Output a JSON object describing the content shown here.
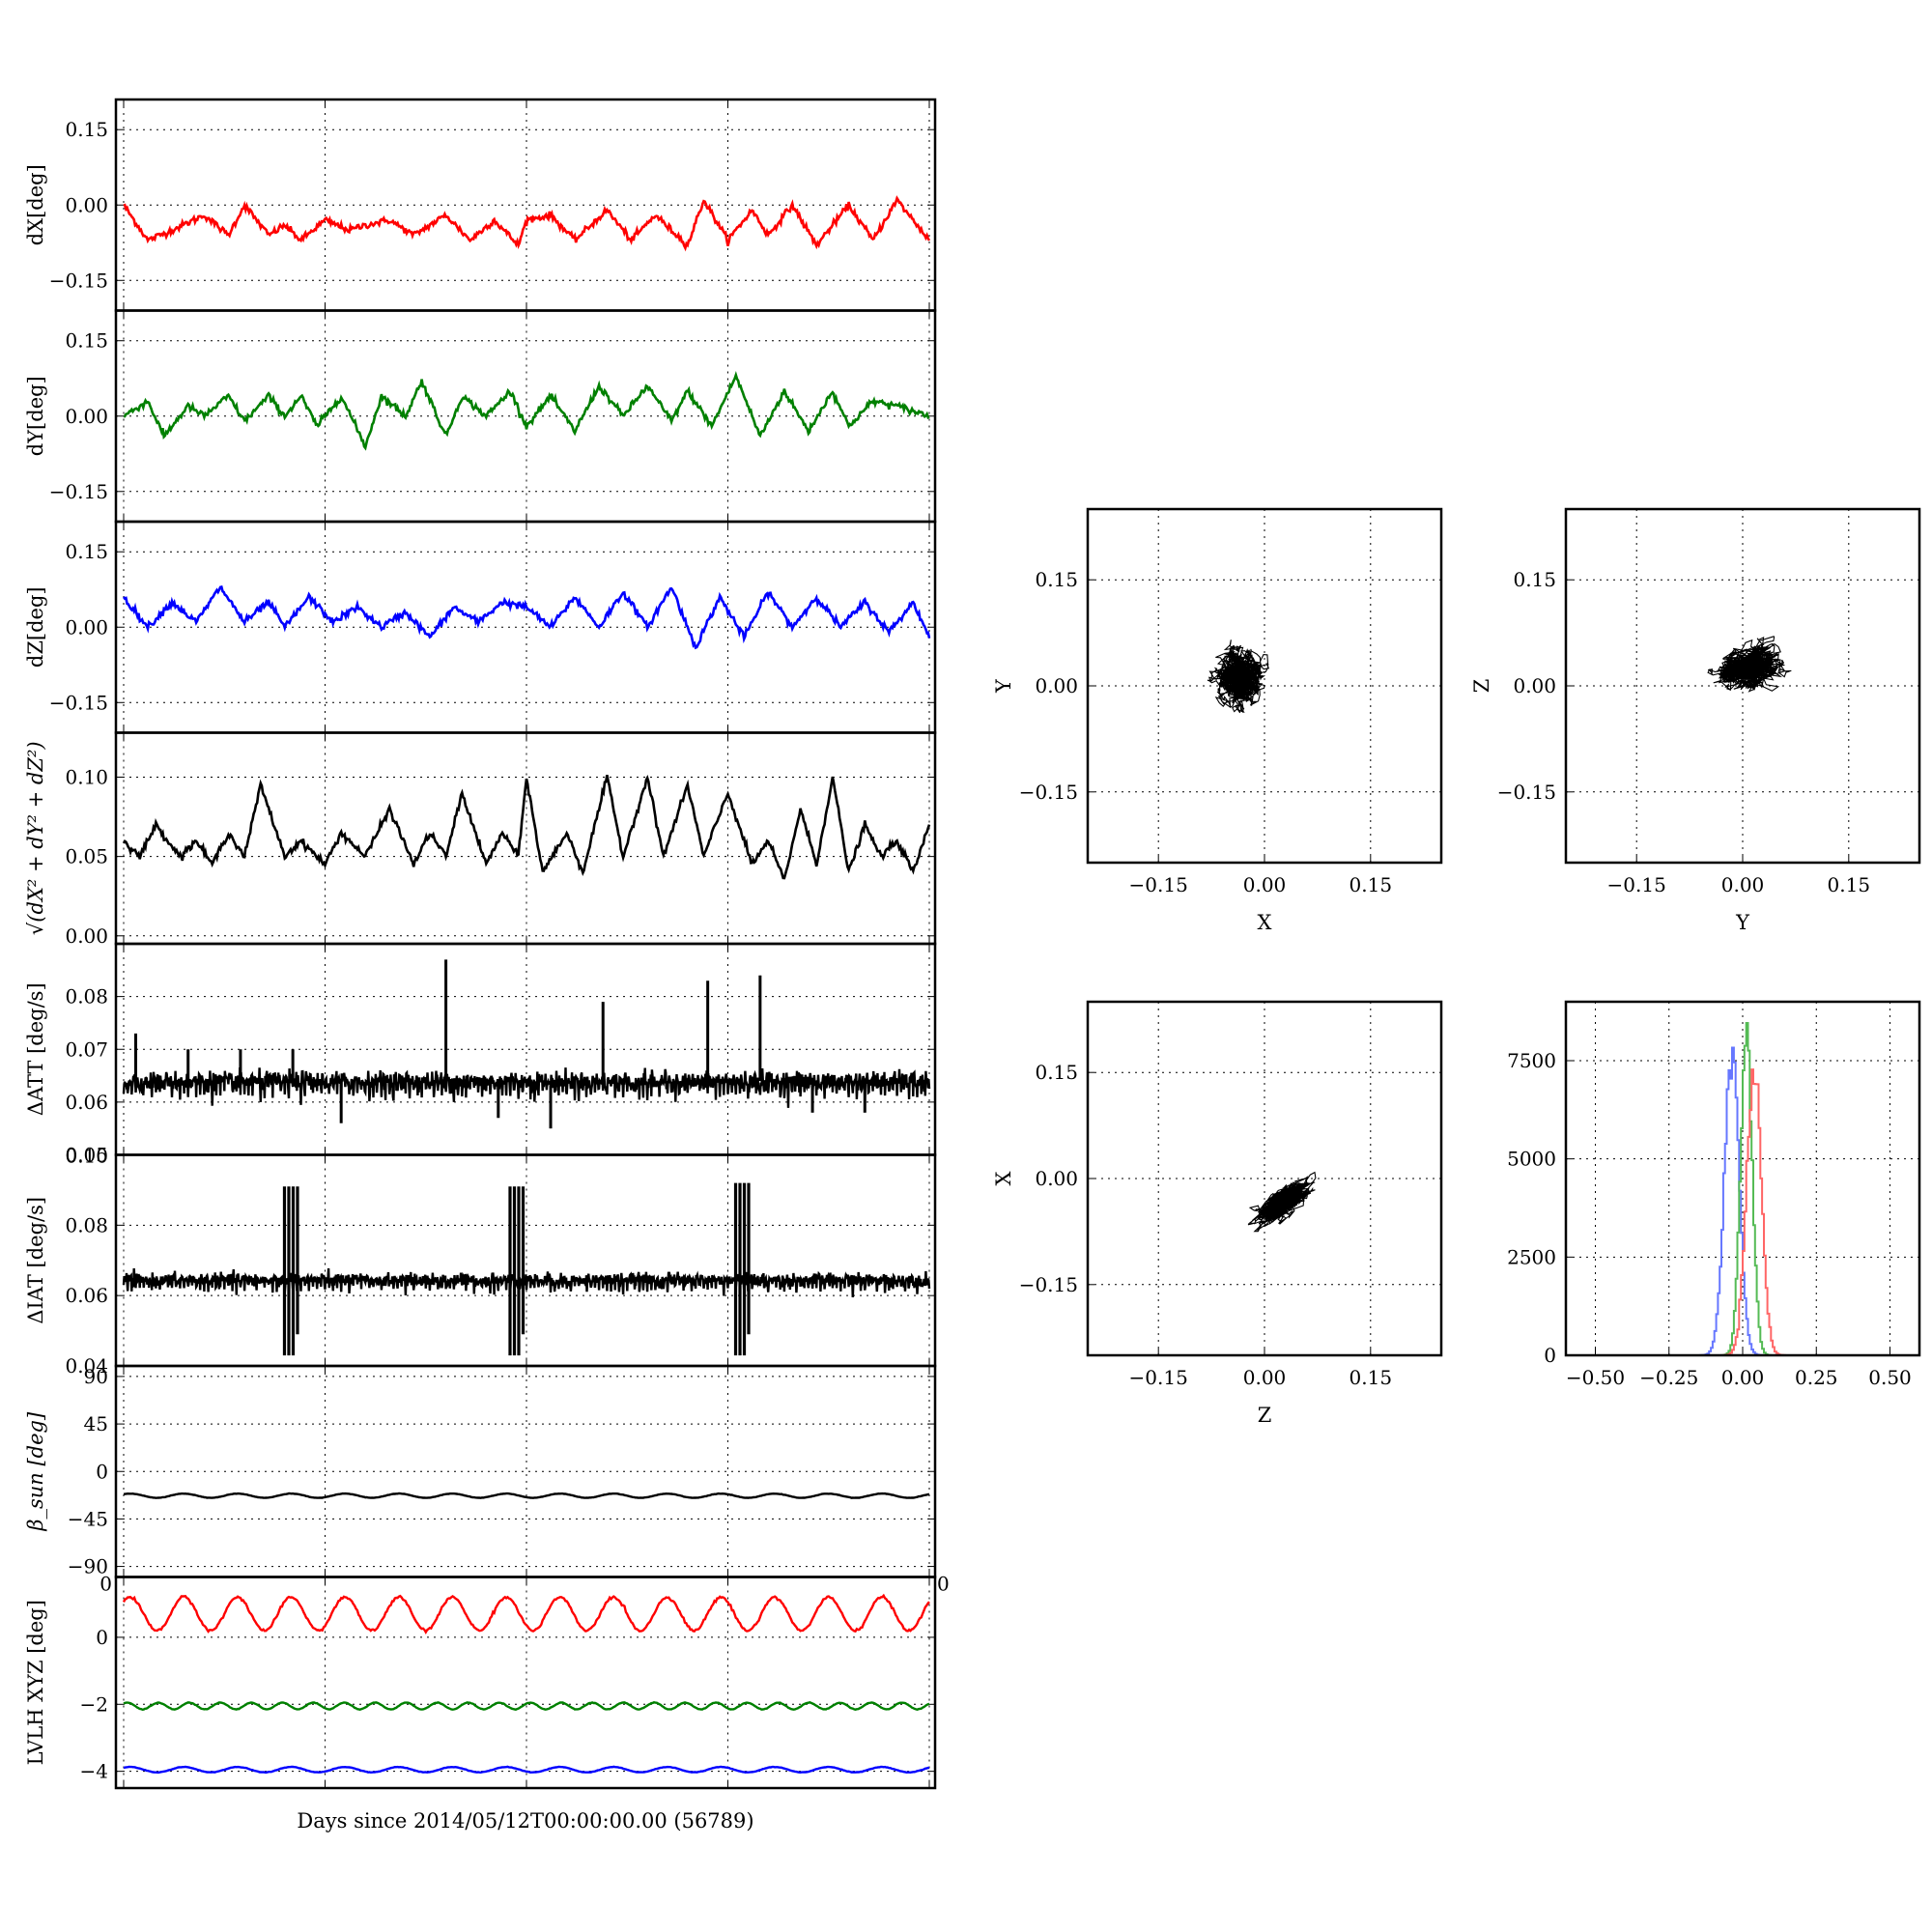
{
  "colors": {
    "red": "#ff0000",
    "green": "#008000",
    "blue": "#0000ff",
    "black": "#000000",
    "hist_red": "#ff6666",
    "hist_green": "#55bb55",
    "hist_blue": "#6677ff"
  },
  "common_xlabel": "Days since 2014/05/12T00:00:00.00 (56789)",
  "chart_data": [
    {
      "id": "dx",
      "type": "line",
      "ylabel": "dX[deg]",
      "ylim": [
        -0.21,
        0.21
      ],
      "yticks": [
        -0.15,
        0.0,
        0.15
      ],
      "ytick_labels": [
        "−0.15",
        "0.00",
        "0.15"
      ],
      "grid": true,
      "series": [
        {
          "color": "red",
          "x": [
            0,
            0.03,
            0.06,
            0.1,
            0.13,
            0.15,
            0.18,
            0.2,
            0.22,
            0.25,
            0.28,
            0.3,
            0.33,
            0.36,
            0.4,
            0.43,
            0.46,
            0.49,
            0.5,
            0.53,
            0.56,
            0.6,
            0.63,
            0.66,
            0.7,
            0.72,
            0.75,
            0.78,
            0.8,
            0.83,
            0.86,
            0.9,
            0.93,
            0.96,
            1.0
          ],
          "y": [
            0.0,
            -0.07,
            -0.05,
            -0.02,
            -0.06,
            0.0,
            -0.06,
            -0.04,
            -0.07,
            -0.03,
            -0.05,
            -0.04,
            -0.03,
            -0.06,
            -0.02,
            -0.07,
            -0.03,
            -0.08,
            -0.03,
            -0.02,
            -0.07,
            -0.01,
            -0.07,
            -0.02,
            -0.08,
            0.01,
            -0.07,
            -0.01,
            -0.06,
            0.0,
            -0.08,
            0.0,
            -0.07,
            0.01,
            -0.07
          ]
        }
      ]
    },
    {
      "id": "dy",
      "type": "line",
      "ylabel": "dY[deg]",
      "ylim": [
        -0.21,
        0.21
      ],
      "yticks": [
        -0.15,
        0.0,
        0.15
      ],
      "ytick_labels": [
        "−0.15",
        "0.00",
        "0.15"
      ],
      "grid": true,
      "series": [
        {
          "color": "green",
          "x": [
            0,
            0.03,
            0.05,
            0.08,
            0.1,
            0.13,
            0.15,
            0.18,
            0.2,
            0.22,
            0.24,
            0.27,
            0.3,
            0.32,
            0.35,
            0.37,
            0.4,
            0.42,
            0.45,
            0.48,
            0.5,
            0.53,
            0.56,
            0.59,
            0.62,
            0.65,
            0.68,
            0.7,
            0.73,
            0.76,
            0.79,
            0.82,
            0.85,
            0.88,
            0.9,
            0.93,
            0.96,
            1.0
          ],
          "y": [
            0.0,
            0.03,
            -0.04,
            0.02,
            0.0,
            0.04,
            -0.01,
            0.04,
            0.0,
            0.04,
            -0.02,
            0.04,
            -0.06,
            0.04,
            0.0,
            0.07,
            -0.04,
            0.04,
            0.0,
            0.05,
            -0.02,
            0.04,
            -0.03,
            0.06,
            0.0,
            0.06,
            -0.01,
            0.05,
            -0.02,
            0.08,
            -0.04,
            0.05,
            -0.03,
            0.05,
            -0.02,
            0.03,
            0.02,
            0.0
          ]
        }
      ]
    },
    {
      "id": "dz",
      "type": "line",
      "ylabel": "dZ[deg]",
      "ylim": [
        -0.21,
        0.21
      ],
      "yticks": [
        -0.15,
        0.0,
        0.15
      ],
      "ytick_labels": [
        "−0.15",
        "0.00",
        "0.15"
      ],
      "grid": true,
      "series": [
        {
          "color": "blue",
          "x": [
            0,
            0.03,
            0.06,
            0.09,
            0.12,
            0.15,
            0.18,
            0.2,
            0.23,
            0.26,
            0.29,
            0.32,
            0.35,
            0.38,
            0.41,
            0.44,
            0.47,
            0.5,
            0.53,
            0.56,
            0.59,
            0.62,
            0.65,
            0.68,
            0.71,
            0.74,
            0.77,
            0.8,
            0.83,
            0.86,
            0.89,
            0.92,
            0.95,
            0.98,
            1.0
          ],
          "y": [
            0.06,
            0.0,
            0.05,
            0.01,
            0.08,
            0.01,
            0.05,
            0.0,
            0.06,
            0.01,
            0.04,
            0.0,
            0.03,
            -0.02,
            0.04,
            0.01,
            0.05,
            0.04,
            0.0,
            0.06,
            0.0,
            0.07,
            0.0,
            0.08,
            -0.04,
            0.06,
            -0.02,
            0.07,
            0.0,
            0.06,
            0.0,
            0.05,
            -0.01,
            0.05,
            -0.02
          ]
        }
      ]
    },
    {
      "id": "dr",
      "type": "line",
      "ylabel_tex": true,
      "ylabel": "√(dX² + dY² + dZ²)",
      "ylim": [
        -0.005,
        0.128
      ],
      "yticks": [
        0.0,
        0.05,
        0.1
      ],
      "ytick_labels": [
        "0.00",
        "0.05",
        "0.10"
      ],
      "grid": true,
      "series": [
        {
          "color": "black",
          "x": [
            0,
            0.02,
            0.04,
            0.07,
            0.09,
            0.11,
            0.13,
            0.15,
            0.17,
            0.2,
            0.22,
            0.25,
            0.27,
            0.3,
            0.33,
            0.36,
            0.38,
            0.4,
            0.42,
            0.45,
            0.47,
            0.49,
            0.5,
            0.52,
            0.55,
            0.57,
            0.6,
            0.62,
            0.65,
            0.67,
            0.7,
            0.72,
            0.75,
            0.78,
            0.8,
            0.82,
            0.84,
            0.86,
            0.88,
            0.9,
            0.92,
            0.94,
            0.96,
            0.98,
            1.0
          ],
          "y": [
            0.06,
            0.05,
            0.07,
            0.05,
            0.06,
            0.045,
            0.065,
            0.05,
            0.095,
            0.05,
            0.06,
            0.045,
            0.065,
            0.05,
            0.08,
            0.045,
            0.065,
            0.05,
            0.09,
            0.045,
            0.065,
            0.05,
            0.1,
            0.04,
            0.065,
            0.04,
            0.1,
            0.05,
            0.1,
            0.05,
            0.095,
            0.05,
            0.09,
            0.045,
            0.06,
            0.035,
            0.08,
            0.045,
            0.1,
            0.04,
            0.07,
            0.05,
            0.06,
            0.04,
            0.07
          ]
        }
      ]
    },
    {
      "id": "datt",
      "type": "line",
      "ylabel": "ΔATT [deg/s]",
      "ylim": [
        0.05,
        0.09
      ],
      "yticks": [
        0.05,
        0.06,
        0.07,
        0.08
      ],
      "ytick_labels": [
        "0.05",
        "0.06",
        "0.07",
        "0.08"
      ],
      "grid": true,
      "base": 0.064,
      "band": 0.002,
      "spikes": [
        {
          "x": 0.015,
          "y": 0.073
        },
        {
          "x": 0.08,
          "y": 0.07
        },
        {
          "x": 0.145,
          "y": 0.07
        },
        {
          "x": 0.21,
          "y": 0.07
        },
        {
          "x": 0.27,
          "y": 0.056
        },
        {
          "x": 0.4,
          "y": 0.087
        },
        {
          "x": 0.465,
          "y": 0.057
        },
        {
          "x": 0.53,
          "y": 0.055
        },
        {
          "x": 0.595,
          "y": 0.079
        },
        {
          "x": 0.725,
          "y": 0.083
        },
        {
          "x": 0.79,
          "y": 0.084
        },
        {
          "x": 0.855,
          "y": 0.058
        },
        {
          "x": 0.92,
          "y": 0.058
        }
      ],
      "series": [
        {
          "color": "black"
        }
      ]
    },
    {
      "id": "diat",
      "type": "line",
      "ylabel": "ΔIAT [deg/s]",
      "ylim": [
        0.04,
        0.1
      ],
      "yticks": [
        0.04,
        0.06,
        0.08
      ],
      "ytick_labels": [
        "0.04",
        "0.06",
        "0.08"
      ],
      "top_tick_label": "0.10",
      "grid": true,
      "base": 0.0645,
      "band": 0.002,
      "bursts": [
        {
          "x": 0.205,
          "low": 0.043,
          "high": 0.091
        },
        {
          "x": 0.485,
          "low": 0.043,
          "high": 0.091
        },
        {
          "x": 0.765,
          "low": 0.043,
          "high": 0.092
        }
      ],
      "series": [
        {
          "color": "black"
        }
      ]
    },
    {
      "id": "beta",
      "type": "line",
      "ylabel": "β_sun [deg]",
      "ylim": [
        -100,
        100
      ],
      "yticks": [
        -90,
        -45,
        0,
        45,
        90
      ],
      "ytick_labels": [
        "−90",
        "−45",
        "0",
        "45",
        "90"
      ],
      "bottom_corner_labels": [
        "0",
        "0"
      ],
      "grid": true,
      "series": [
        {
          "color": "black",
          "mean": -23,
          "amplitude": 2,
          "cycles": 15
        }
      ]
    },
    {
      "id": "lvlh",
      "type": "line",
      "ylabel": "LVLH XYZ [deg]",
      "ylim": [
        -4.5,
        1.8
      ],
      "yticks": [
        -4,
        -2,
        0
      ],
      "ytick_labels": [
        "−4",
        "−2",
        "0"
      ],
      "grid": true,
      "series": [
        {
          "color": "red",
          "mean": 0.7,
          "amplitude": 0.5,
          "cycles": 15
        },
        {
          "color": "green",
          "mean": -2.05,
          "amplitude": 0.1,
          "cycles": 26
        },
        {
          "color": "blue",
          "mean": -3.95,
          "amplitude": 0.08,
          "cycles": 15
        }
      ]
    },
    {
      "id": "xy",
      "type": "scatter",
      "xlabel": "X",
      "ylabel": "Y",
      "xlim": [
        -0.25,
        0.25
      ],
      "ylim": [
        -0.25,
        0.25
      ],
      "ticks": [
        -0.15,
        0.0,
        0.15
      ],
      "tick_labels": [
        "−0.15",
        "0.00",
        "0.15"
      ],
      "grid": true,
      "cloud": {
        "cx": -0.035,
        "cy": 0.01,
        "sx": 0.022,
        "sy": 0.026,
        "rho": 0.0
      }
    },
    {
      "id": "yz",
      "type": "scatter",
      "xlabel": "Y",
      "ylabel": "Z",
      "xlim": [
        -0.25,
        0.25
      ],
      "ylim": [
        -0.25,
        0.25
      ],
      "ticks": [
        -0.15,
        0.0,
        0.15
      ],
      "tick_labels": [
        "−0.15",
        "0.00",
        "0.15"
      ],
      "grid": true,
      "cloud": {
        "cx": 0.005,
        "cy": 0.025,
        "sx": 0.03,
        "sy": 0.022,
        "rho": 0.2
      }
    },
    {
      "id": "zx",
      "type": "scatter",
      "xlabel": "Z",
      "ylabel": "X",
      "xlim": [
        -0.25,
        0.25
      ],
      "ylim": [
        -0.25,
        0.25
      ],
      "ticks": [
        -0.15,
        0.0,
        0.15
      ],
      "tick_labels": [
        "−0.15",
        "0.00",
        "0.15"
      ],
      "grid": true,
      "cloud": {
        "cx": 0.025,
        "cy": -0.035,
        "sx": 0.026,
        "sy": 0.02,
        "rho": 0.75
      }
    },
    {
      "id": "hist",
      "type": "histogram",
      "xlim": [
        -0.6,
        0.6
      ],
      "ylim": [
        0,
        9000
      ],
      "xticks": [
        -0.5,
        -0.25,
        0.0,
        0.25,
        0.5
      ],
      "xtick_labels": [
        "−0.50",
        "−0.25",
        "0.00",
        "0.25",
        "0.50"
      ],
      "yticks": [
        0,
        2500,
        5000,
        7500
      ],
      "ytick_labels": [
        "0",
        "2500",
        "5000",
        "7500"
      ],
      "grid": true,
      "series": [
        {
          "color": "hist_blue",
          "mean": -0.04,
          "sd": 0.025,
          "peak": 7800
        },
        {
          "color": "hist_green",
          "mean": 0.01,
          "sd": 0.02,
          "peak": 8000
        },
        {
          "color": "hist_red",
          "mean": 0.035,
          "sd": 0.025,
          "peak": 7500
        }
      ]
    }
  ]
}
